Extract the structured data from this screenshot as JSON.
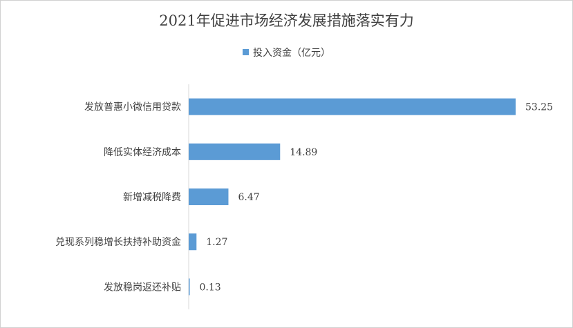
{
  "chart_data": {
    "type": "bar",
    "orientation": "horizontal",
    "title": "2021年促进市场经济发展措施落实有力",
    "categories": [
      "发放普惠小微信用贷款",
      "降低实体经济成本",
      "新增减税降费",
      "兑现系列稳增长扶持补助资金",
      "发放稳岗返还补贴"
    ],
    "series": [
      {
        "name": "投入资金（亿元）",
        "values": [
          53.25,
          14.89,
          6.47,
          1.27,
          0.13
        ],
        "labels": [
          "53.25",
          "14.89",
          "6.47",
          "1.27",
          "0.13"
        ],
        "color": "#5b9bd5"
      }
    ],
    "xlim": [
      0,
      53.25
    ],
    "grid": false,
    "legend_position": "top"
  }
}
